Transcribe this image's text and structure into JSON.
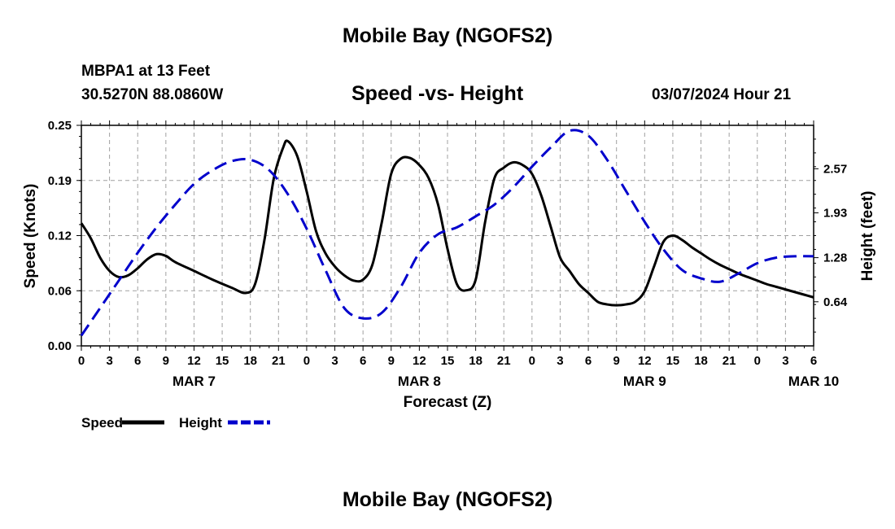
{
  "header": {
    "title": "Mobile Bay (NGOFS2)",
    "station": "MBPA1 at 13 Feet",
    "coordinates": "30.5270N  88.0860W",
    "subtitle": "Speed -vs- Height",
    "timestamp": "03/07/2024 Hour 21",
    "footer_title": "Mobile Bay (NGOFS2)"
  },
  "chart_data": {
    "type": "line",
    "title": "Speed -vs- Height",
    "xlabel": "Forecast (Z)",
    "ylabel_left": "Speed (Knots)",
    "ylabel_right": "Height (feet)",
    "x_tick_labels": [
      "0",
      "3",
      "6",
      "9",
      "12",
      "15",
      "18",
      "21",
      "0",
      "3",
      "6",
      "9",
      "12",
      "15",
      "18",
      "21",
      "0",
      "3",
      "6",
      "9",
      "12",
      "15",
      "18",
      "21",
      "0",
      "3",
      "6"
    ],
    "date_labels": [
      {
        "label": "MAR 7",
        "hour": 12
      },
      {
        "label": "MAR 8",
        "hour": 36
      },
      {
        "label": "MAR 9",
        "hour": 60
      },
      {
        "label": "MAR 10",
        "hour": 78
      }
    ],
    "xlim": [
      0,
      78
    ],
    "ylim_left": [
      0,
      0.25
    ],
    "yticks_left": [
      "0.00",
      "0.06",
      "0.12",
      "0.19",
      "0.25"
    ],
    "ylim_right": [
      0,
      3.2
    ],
    "yticks_right": [
      {
        "label": "0.64",
        "value": 0.64
      },
      {
        "label": "1.28",
        "value": 1.28
      },
      {
        "label": "1.93",
        "value": 1.93
      },
      {
        "label": "2.57",
        "value": 2.57
      }
    ],
    "grid": true,
    "legend_position": "bottom-left",
    "series": [
      {
        "name": "Speed",
        "axis": "left",
        "color": "#000000",
        "dash": "solid",
        "x": [
          0,
          1,
          2,
          3,
          4,
          5,
          6,
          7,
          8,
          9,
          10,
          12,
          14,
          16,
          17.5,
          18.5,
          19.5,
          20.5,
          21.5,
          22,
          23,
          24,
          25,
          26,
          27,
          28,
          29,
          30,
          31,
          32,
          33,
          34,
          35,
          36,
          37,
          38,
          39,
          40,
          41,
          42,
          43,
          44,
          45,
          46,
          47,
          48,
          49,
          50,
          51,
          52,
          53,
          54,
          55,
          56,
          57,
          58,
          59,
          60,
          61,
          62,
          63,
          64,
          65,
          66,
          67,
          68,
          69,
          70,
          71,
          72,
          73,
          74,
          75,
          76,
          77,
          78
        ],
        "values": [
          0.139,
          0.122,
          0.1,
          0.085,
          0.078,
          0.08,
          0.088,
          0.098,
          0.104,
          0.102,
          0.095,
          0.085,
          0.075,
          0.066,
          0.06,
          0.07,
          0.12,
          0.19,
          0.225,
          0.232,
          0.215,
          0.175,
          0.13,
          0.105,
          0.09,
          0.08,
          0.074,
          0.075,
          0.092,
          0.14,
          0.195,
          0.212,
          0.213,
          0.205,
          0.19,
          0.16,
          0.11,
          0.07,
          0.063,
          0.075,
          0.14,
          0.19,
          0.202,
          0.208,
          0.205,
          0.195,
          0.17,
          0.135,
          0.1,
          0.085,
          0.07,
          0.06,
          0.05,
          0.047,
          0.046,
          0.047,
          0.05,
          0.062,
          0.09,
          0.118,
          0.125,
          0.12,
          0.112,
          0.105,
          0.098,
          0.092,
          0.087,
          0.082,
          0.078,
          0.074,
          0.07,
          0.067,
          0.064,
          0.061,
          0.058,
          0.055
        ]
      },
      {
        "name": "Height",
        "axis": "right",
        "color": "#0000cc",
        "dash": "dashed",
        "x": [
          0,
          2,
          4,
          6,
          8,
          10,
          12,
          14,
          16,
          18,
          20,
          22,
          24,
          26,
          28,
          30,
          32,
          34,
          36,
          38,
          40,
          42,
          44,
          46,
          48,
          50,
          52,
          54,
          56,
          58,
          60,
          62,
          64,
          66,
          68,
          70,
          72,
          74,
          76,
          78
        ],
        "values": [
          0.15,
          0.55,
          0.95,
          1.35,
          1.72,
          2.05,
          2.35,
          2.55,
          2.68,
          2.7,
          2.55,
          2.2,
          1.7,
          1.1,
          0.55,
          0.4,
          0.48,
          0.85,
          1.35,
          1.62,
          1.72,
          1.88,
          2.05,
          2.3,
          2.6,
          2.88,
          3.12,
          3.05,
          2.7,
          2.25,
          1.8,
          1.4,
          1.1,
          0.98,
          0.93,
          1.05,
          1.2,
          1.28,
          1.3,
          1.3
        ]
      }
    ]
  }
}
